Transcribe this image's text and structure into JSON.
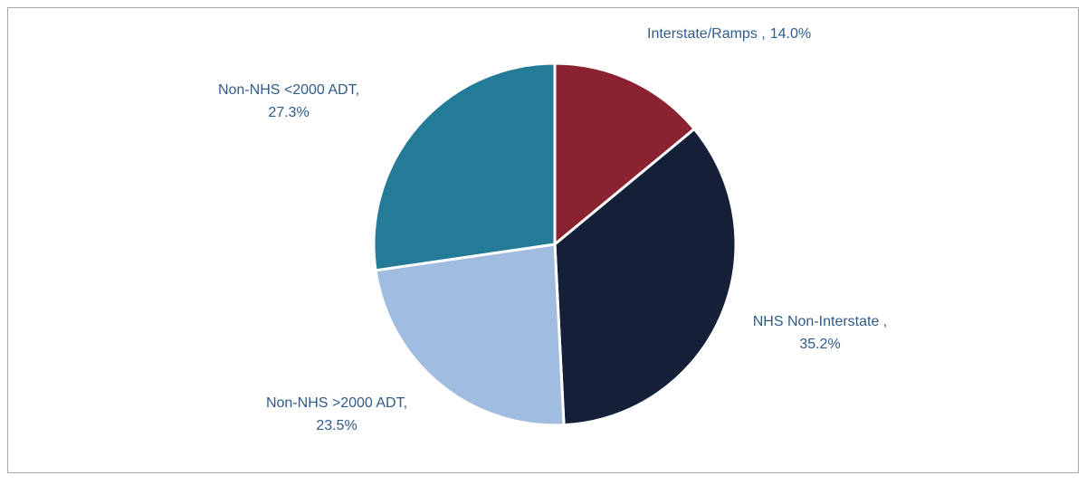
{
  "chart_data": {
    "type": "pie",
    "categories": [
      "Interstate/Ramps ,",
      "NHS Non-Interstate ,",
      "Non-NHS >2000 ADT,",
      "Non-NHS <2000 ADT,"
    ],
    "values": [
      14.0,
      35.2,
      23.5,
      27.3
    ],
    "value_labels": [
      "14.0%",
      "35.2%",
      "23.5%",
      "27.3%"
    ],
    "colors": [
      "#8b2231",
      "#141f38",
      "#a0bde0",
      "#247b98"
    ]
  }
}
